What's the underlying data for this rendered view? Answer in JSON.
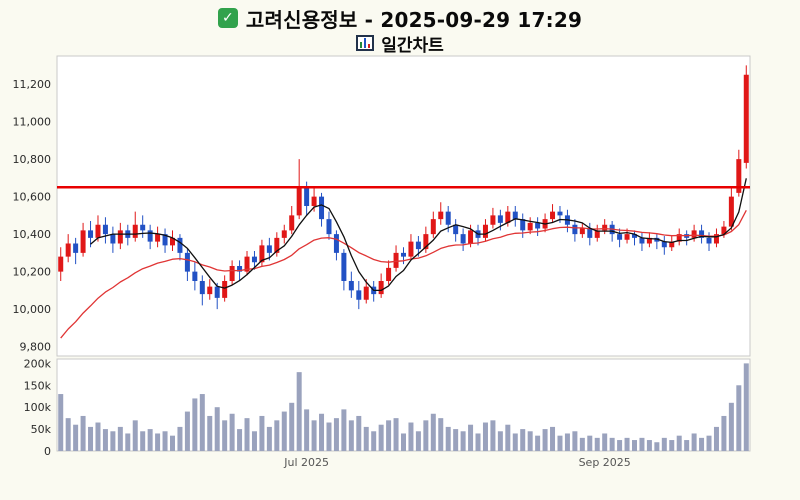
{
  "icons": {
    "check": "✓"
  },
  "chart_data": {
    "type": "candlestick",
    "title": "고려신용정보 - 2025-09-29 17:29",
    "subtitle": "일간차트",
    "xlabel": "",
    "ylabel": "",
    "legend": "none",
    "grid": false,
    "price_axis": {
      "min": 9750,
      "max": 11350,
      "ticks": [
        {
          "label": "11,200",
          "value": 11200
        },
        {
          "label": "11,000",
          "value": 11000
        },
        {
          "label": "10,800",
          "value": 10800
        },
        {
          "label": "10,600",
          "value": 10600
        },
        {
          "label": "10,400",
          "value": 10400
        },
        {
          "label": "10,200",
          "value": 10200
        },
        {
          "label": "10,000",
          "value": 10000
        },
        {
          "label": "9,800",
          "value": 9800
        }
      ]
    },
    "volume_axis": {
      "max": 210,
      "unit": "thousand_shares",
      "ticks": [
        {
          "label": "200k",
          "value": 200
        },
        {
          "label": "150k",
          "value": 150
        },
        {
          "label": "100k",
          "value": 100
        },
        {
          "label": "50k",
          "value": 50
        },
        {
          "label": "0",
          "value": 0
        }
      ]
    },
    "x_ticks": [
      {
        "label": "Jul 2025",
        "index": 33
      },
      {
        "label": "Sep 2025",
        "index": 73
      }
    ],
    "hline": {
      "value": 10650,
      "color": "#e80000"
    },
    "ma_fast_period": 5,
    "ma_slow_period": 20,
    "ma_slow_seed": 9800,
    "colors": {
      "up": "#e01717",
      "down": "#2251c4",
      "volume": "#9aa2bd",
      "ma_fast": "#101010",
      "ma_slow": "#e03535",
      "panel_border": "#c9c9c9",
      "axis_text": "#2a2a2a",
      "axis_text2": "#555555",
      "background": "#fafaf1"
    },
    "candles_format": [
      "open",
      "high",
      "low",
      "close",
      "volume_k"
    ],
    "candles": [
      [
        10200,
        10330,
        10150,
        10280,
        130
      ],
      [
        10280,
        10400,
        10250,
        10350,
        75
      ],
      [
        10350,
        10380,
        10240,
        10300,
        60
      ],
      [
        10300,
        10460,
        10280,
        10420,
        80
      ],
      [
        10420,
        10470,
        10330,
        10380,
        55
      ],
      [
        10380,
        10500,
        10360,
        10450,
        65
      ],
      [
        10450,
        10490,
        10350,
        10400,
        50
      ],
      [
        10400,
        10440,
        10300,
        10350,
        45
      ],
      [
        10350,
        10460,
        10320,
        10420,
        55
      ],
      [
        10420,
        10450,
        10340,
        10380,
        40
      ],
      [
        10380,
        10520,
        10360,
        10450,
        70
      ],
      [
        10450,
        10500,
        10380,
        10420,
        45
      ],
      [
        10420,
        10450,
        10320,
        10360,
        50
      ],
      [
        10360,
        10440,
        10330,
        10400,
        40
      ],
      [
        10400,
        10430,
        10300,
        10340,
        45
      ],
      [
        10340,
        10420,
        10310,
        10380,
        35
      ],
      [
        10380,
        10400,
        10260,
        10300,
        55
      ],
      [
        10300,
        10320,
        10150,
        10200,
        90
      ],
      [
        10200,
        10250,
        10100,
        10150,
        120
      ],
      [
        10150,
        10180,
        10020,
        10080,
        130
      ],
      [
        10080,
        10160,
        10050,
        10120,
        80
      ],
      [
        10120,
        10140,
        10000,
        10060,
        100
      ],
      [
        10060,
        10180,
        10040,
        10150,
        70
      ],
      [
        10150,
        10260,
        10130,
        10230,
        85
      ],
      [
        10230,
        10260,
        10150,
        10200,
        50
      ],
      [
        10200,
        10310,
        10180,
        10280,
        75
      ],
      [
        10280,
        10310,
        10210,
        10250,
        45
      ],
      [
        10250,
        10370,
        10230,
        10340,
        80
      ],
      [
        10340,
        10380,
        10260,
        10300,
        55
      ],
      [
        10300,
        10410,
        10280,
        10380,
        70
      ],
      [
        10380,
        10450,
        10350,
        10420,
        90
      ],
      [
        10420,
        10550,
        10400,
        10500,
        110
      ],
      [
        10500,
        10800,
        10480,
        10650,
        180
      ],
      [
        10650,
        10680,
        10500,
        10550,
        95
      ],
      [
        10550,
        10650,
        10520,
        10600,
        70
      ],
      [
        10600,
        10620,
        10440,
        10480,
        85
      ],
      [
        10480,
        10520,
        10370,
        10400,
        65
      ],
      [
        10400,
        10420,
        10260,
        10300,
        75
      ],
      [
        10300,
        10320,
        10100,
        10150,
        95
      ],
      [
        10150,
        10200,
        10060,
        10100,
        70
      ],
      [
        10100,
        10150,
        10000,
        10050,
        80
      ],
      [
        10050,
        10160,
        10030,
        10120,
        55
      ],
      [
        10120,
        10150,
        10040,
        10080,
        45
      ],
      [
        10080,
        10190,
        10060,
        10150,
        60
      ],
      [
        10150,
        10260,
        10130,
        10220,
        70
      ],
      [
        10220,
        10340,
        10200,
        10300,
        75
      ],
      [
        10300,
        10330,
        10240,
        10280,
        40
      ],
      [
        10280,
        10400,
        10260,
        10360,
        65
      ],
      [
        10360,
        10390,
        10280,
        10320,
        45
      ],
      [
        10320,
        10440,
        10300,
        10400,
        70
      ],
      [
        10400,
        10520,
        10380,
        10480,
        85
      ],
      [
        10480,
        10570,
        10450,
        10520,
        75
      ],
      [
        10520,
        10550,
        10410,
        10450,
        55
      ],
      [
        10450,
        10480,
        10360,
        10400,
        50
      ],
      [
        10400,
        10430,
        10310,
        10350,
        45
      ],
      [
        10350,
        10450,
        10330,
        10420,
        60
      ],
      [
        10420,
        10450,
        10340,
        10380,
        40
      ],
      [
        10380,
        10480,
        10360,
        10450,
        65
      ],
      [
        10450,
        10540,
        10430,
        10500,
        70
      ],
      [
        10500,
        10530,
        10420,
        10460,
        45
      ],
      [
        10460,
        10550,
        10440,
        10520,
        60
      ],
      [
        10520,
        10550,
        10440,
        10480,
        40
      ],
      [
        10480,
        10510,
        10380,
        10420,
        50
      ],
      [
        10420,
        10490,
        10400,
        10460,
        45
      ],
      [
        10460,
        10490,
        10390,
        10430,
        35
      ],
      [
        10430,
        10510,
        10410,
        10480,
        50
      ],
      [
        10480,
        10560,
        10460,
        10520,
        55
      ],
      [
        10520,
        10550,
        10460,
        10500,
        35
      ],
      [
        10500,
        10530,
        10410,
        10450,
        40
      ],
      [
        10450,
        10480,
        10360,
        10400,
        45
      ],
      [
        10400,
        10460,
        10380,
        10430,
        30
      ],
      [
        10430,
        10460,
        10340,
        10380,
        35
      ],
      [
        10380,
        10450,
        10360,
        10420,
        30
      ],
      [
        10420,
        10480,
        10400,
        10450,
        40
      ],
      [
        10450,
        10470,
        10360,
        10400,
        30
      ],
      [
        10400,
        10430,
        10330,
        10370,
        25
      ],
      [
        10370,
        10430,
        10350,
        10400,
        30
      ],
      [
        10400,
        10420,
        10340,
        10380,
        25
      ],
      [
        10380,
        10410,
        10310,
        10350,
        30
      ],
      [
        10350,
        10410,
        10330,
        10380,
        25
      ],
      [
        10380,
        10400,
        10320,
        10360,
        20
      ],
      [
        10360,
        10390,
        10290,
        10330,
        30
      ],
      [
        10330,
        10390,
        10310,
        10360,
        25
      ],
      [
        10360,
        10430,
        10340,
        10400,
        35
      ],
      [
        10400,
        10420,
        10340,
        10380,
        25
      ],
      [
        10380,
        10450,
        10360,
        10420,
        40
      ],
      [
        10420,
        10450,
        10350,
        10380,
        30
      ],
      [
        10380,
        10410,
        10310,
        10350,
        35
      ],
      [
        10350,
        10430,
        10330,
        10400,
        55
      ],
      [
        10400,
        10470,
        10380,
        10440,
        80
      ],
      [
        10440,
        10650,
        10420,
        10600,
        110
      ],
      [
        10620,
        10850,
        10600,
        10800,
        150
      ],
      [
        10780,
        11300,
        10750,
        11250,
        200
      ]
    ]
  }
}
